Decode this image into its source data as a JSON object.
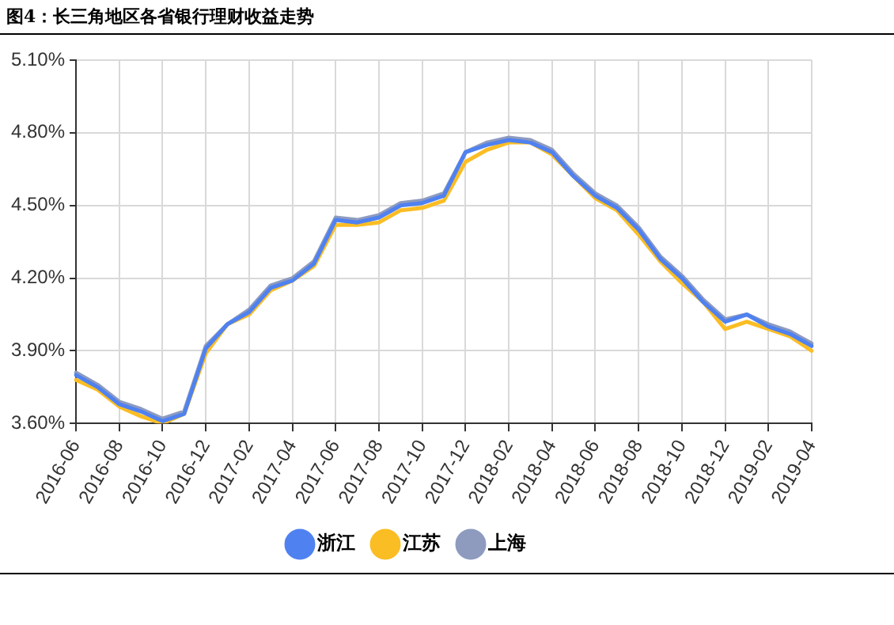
{
  "chart_data": {
    "type": "line",
    "title": "图4：长三角地区各省银行理财收益走势",
    "categories": [
      "2016-06",
      null,
      "2016-08",
      null,
      "2016-10",
      null,
      "2016-12",
      null,
      "2017-02",
      null,
      "2017-04",
      null,
      "2017-06",
      null,
      "2017-08",
      null,
      "2017-10",
      null,
      "2017-12",
      null,
      "2018-02",
      null,
      "2018-04",
      null,
      "2018-06",
      null,
      "2018-08",
      null,
      "2018-10",
      null,
      "2018-12",
      null,
      "2019-02",
      null,
      "2019-04"
    ],
    "series": [
      {
        "name": "浙江",
        "color": "#4f81f0",
        "values": [
          3.8,
          3.75,
          3.68,
          3.65,
          3.61,
          3.64,
          3.91,
          4.01,
          4.06,
          4.16,
          4.19,
          4.26,
          4.44,
          4.43,
          4.45,
          4.5,
          4.51,
          4.54,
          4.72,
          4.75,
          4.77,
          4.76,
          4.72,
          4.62,
          4.54,
          4.49,
          4.4,
          4.28,
          4.2,
          4.1,
          4.02,
          4.05,
          4.0,
          3.97,
          3.92
        ]
      },
      {
        "name": "江苏",
        "color": "#fbbd24",
        "values": [
          3.78,
          3.74,
          3.67,
          3.63,
          3.6,
          3.64,
          3.89,
          4.01,
          4.05,
          4.15,
          4.19,
          4.25,
          4.42,
          4.42,
          4.43,
          4.48,
          4.49,
          4.52,
          4.68,
          4.73,
          4.76,
          4.76,
          4.71,
          4.62,
          4.53,
          4.48,
          4.38,
          4.27,
          4.18,
          4.1,
          3.99,
          4.02,
          3.99,
          3.96,
          3.9
        ]
      },
      {
        "name": "上海",
        "color": "#8e9bbf",
        "values": [
          3.81,
          3.76,
          3.69,
          3.66,
          3.62,
          3.65,
          3.92,
          4.01,
          4.07,
          4.17,
          4.2,
          4.27,
          4.45,
          4.44,
          4.46,
          4.51,
          4.52,
          4.55,
          4.72,
          4.76,
          4.78,
          4.77,
          4.73,
          4.63,
          4.55,
          4.5,
          4.41,
          4.29,
          4.21,
          4.11,
          4.03,
          4.05,
          4.01,
          3.98,
          3.93
        ]
      }
    ],
    "ylim": [
      3.6,
      5.1
    ],
    "yticks": [
      {
        "value": 3.6,
        "label": "3.60%"
      },
      {
        "value": 3.9,
        "label": "3.90%"
      },
      {
        "value": 4.2,
        "label": "4.20%"
      },
      {
        "value": 4.5,
        "label": "4.50%"
      },
      {
        "value": 4.8,
        "label": "4.80%"
      },
      {
        "value": 5.1,
        "label": "5.10%"
      }
    ],
    "grid": true,
    "legend": "bottom",
    "marker": "none",
    "line_style": "solid"
  }
}
